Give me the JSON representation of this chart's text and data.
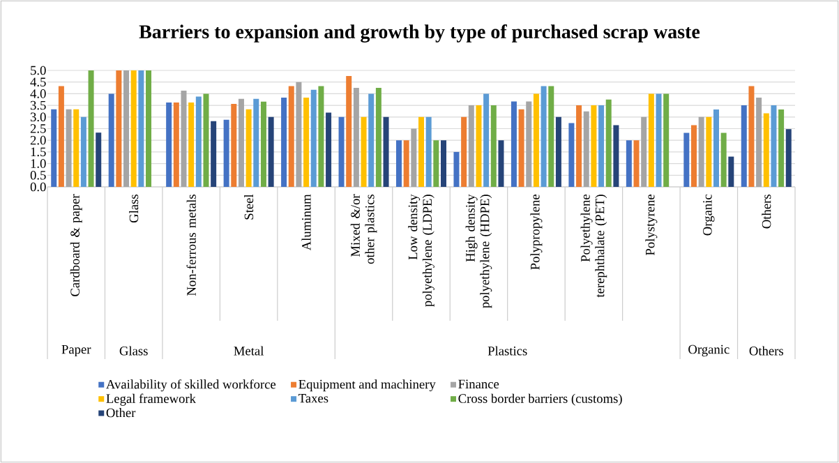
{
  "chart_data": {
    "type": "bar",
    "title": "Barriers to expansion and growth by type of purchased scrap waste",
    "categories": [
      "Cardboard & paper",
      "Glass",
      "Non-ferrous metals",
      "Steel",
      "Aluminum",
      "Mixed &/or other plastics",
      "Low density polyethylene (LDPE)",
      "High density polyethylene (HDPE)",
      "Polypropylene",
      "Polyethylene terephthalate (PET)",
      "Polystyrene",
      "Organic",
      "Others"
    ],
    "series": [
      {
        "name": "Availability of skilled workforce",
        "color": "#4472c4",
        "values": [
          3.33,
          4.0,
          3.62,
          2.88,
          3.83,
          3.0,
          2.0,
          1.5,
          3.67,
          2.74,
          2.0,
          2.32,
          3.5
        ]
      },
      {
        "name": "Equipment and machinery",
        "color": "#ed7d31",
        "values": [
          4.33,
          5.0,
          3.62,
          3.56,
          4.33,
          4.76,
          2.0,
          3.0,
          3.33,
          3.5,
          2.0,
          2.65,
          4.33
        ]
      },
      {
        "name": "Finance",
        "color": "#a5a5a5",
        "values": [
          3.33,
          5.0,
          4.13,
          3.78,
          4.5,
          4.25,
          2.5,
          3.5,
          3.67,
          3.24,
          3.0,
          3.0,
          3.83
        ]
      },
      {
        "name": "Legal framework",
        "color": "#ffc000",
        "values": [
          3.33,
          5.0,
          3.62,
          3.33,
          3.83,
          3.0,
          3.0,
          3.5,
          4.0,
          3.5,
          4.0,
          3.0,
          3.16
        ]
      },
      {
        "name": "Taxes",
        "color": "#5b9bd5",
        "values": [
          3.0,
          5.0,
          3.88,
          3.78,
          4.17,
          4.0,
          3.0,
          4.0,
          4.33,
          3.5,
          4.0,
          3.32,
          3.5
        ]
      },
      {
        "name": "Cross border barriers (customs)",
        "color": "#70ad47",
        "values": [
          5.0,
          5.0,
          4.0,
          3.66,
          4.33,
          4.25,
          2.0,
          3.5,
          4.33,
          3.75,
          4.0,
          2.32,
          3.32
        ]
      },
      {
        "name": "Other",
        "color": "#264478",
        "values": [
          2.33,
          null,
          2.82,
          3.0,
          3.19,
          3.0,
          2.0,
          2.0,
          3.0,
          2.65,
          null,
          1.3,
          2.48
        ]
      }
    ],
    "ylim": [
      0,
      5
    ],
    "yticks": [
      {
        "value": 0,
        "label": "0.0"
      },
      {
        "value": 0.5,
        "label": "0.5"
      },
      {
        "value": 1,
        "label": "1.0"
      },
      {
        "value": 1.5,
        "label": "1.5"
      },
      {
        "value": 2,
        "label": "2.0"
      },
      {
        "value": 2.5,
        "label": "2.5"
      },
      {
        "value": 3,
        "label": "3.0"
      },
      {
        "value": 3.5,
        "label": "3.5"
      },
      {
        "value": 4,
        "label": "4.0"
      },
      {
        "value": 4.5,
        "label": "4.5"
      },
      {
        "value": 5,
        "label": "5.0"
      }
    ],
    "grid": "y",
    "legend": "bottom",
    "annotations": [
      "Paper",
      "Glass",
      "Metal",
      "Plastics",
      "Organic",
      "Others"
    ]
  }
}
